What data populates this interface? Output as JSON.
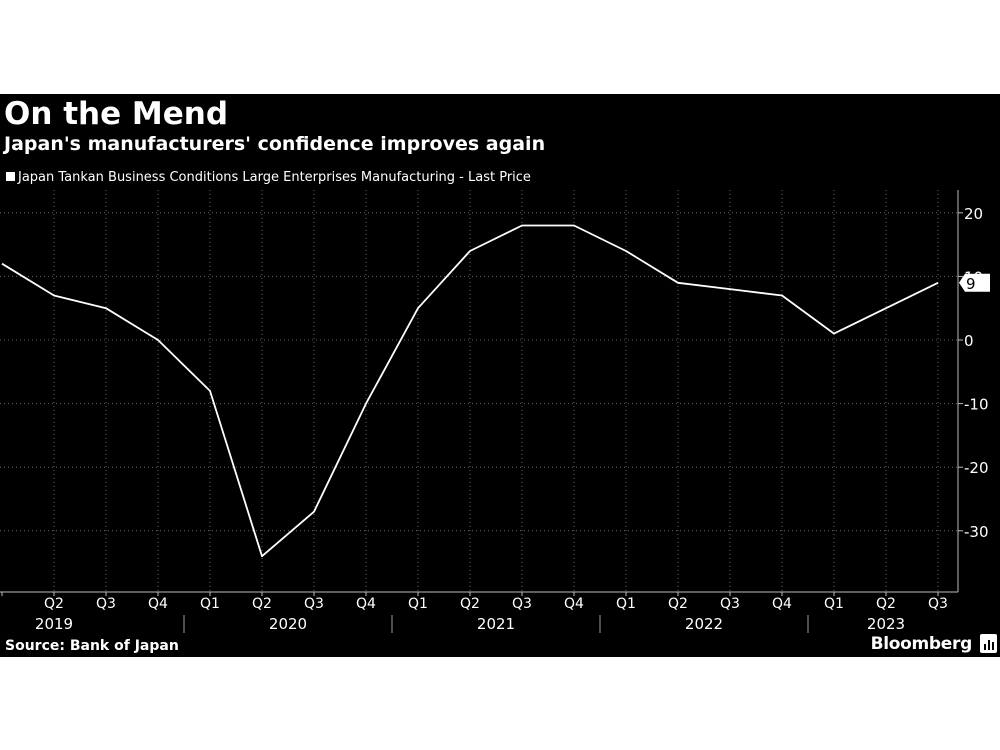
{
  "header": {
    "title": "On the Mend",
    "subtitle": "Japan's manufacturers' confidence improves again"
  },
  "legend": {
    "label": "Japan Tankan Business Conditions Large Enterprises Manufacturing - Last Price",
    "color": "#ffffff"
  },
  "footer": {
    "source": "Source: Bank of Japan",
    "brand": "Bloomberg"
  },
  "chart_data": {
    "type": "line",
    "title": "On the Mend",
    "subtitle": "Japan's manufacturers' confidence improves again",
    "xlabel": "",
    "ylabel": "",
    "x": [
      "2019 Q1",
      "2019 Q2",
      "2019 Q3",
      "2019 Q4",
      "2020 Q1",
      "2020 Q2",
      "2020 Q3",
      "2020 Q4",
      "2021 Q1",
      "2021 Q2",
      "2021 Q3",
      "2021 Q4",
      "2022 Q1",
      "2022 Q2",
      "2022 Q3",
      "2022 Q4",
      "2023 Q1",
      "2023 Q2",
      "2023 Q3"
    ],
    "tick_labels": [
      "Q2",
      "Q3",
      "Q4",
      "Q1",
      "Q2",
      "Q3",
      "Q4",
      "Q1",
      "Q2",
      "Q3",
      "Q4",
      "Q1",
      "Q2",
      "Q3",
      "Q4",
      "Q1",
      "Q2",
      "Q3"
    ],
    "year_labels": [
      "2019",
      "2020",
      "2021",
      "2022",
      "2023"
    ],
    "series": [
      {
        "name": "Japan Tankan Business Conditions Large Enterprises Manufacturing - Last Price",
        "values": [
          12,
          7,
          5,
          0,
          -8,
          -34,
          -27,
          -10,
          5,
          14,
          18,
          18,
          14,
          9,
          8,
          7,
          1,
          5,
          9
        ],
        "color": "#ffffff"
      }
    ],
    "y_ticks": [
      "20",
      "10",
      "0",
      "-10",
      "-20",
      "-30"
    ],
    "ylim": [
      -38,
      22
    ],
    "last_value_label": "9",
    "grid": true,
    "legend_position": "top-left"
  }
}
